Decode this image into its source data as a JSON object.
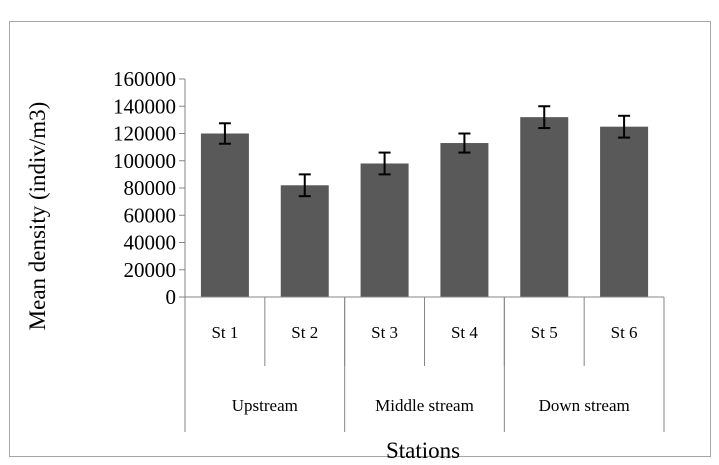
{
  "chart_data": {
    "type": "bar",
    "title": "",
    "xlabel": "Stations",
    "ylabel": "Mean density (indiv/m3)",
    "ylim": [
      0,
      160000
    ],
    "yticks": [
      0,
      20000,
      40000,
      60000,
      80000,
      100000,
      120000,
      140000,
      160000
    ],
    "yticks_labels": [
      "0",
      "20000",
      "40000",
      "60000",
      "80000",
      "100000",
      "120000",
      "140000",
      "160000"
    ],
    "categories": [
      "St 1",
      "St 2",
      "St 3",
      "St 4",
      "St 5",
      "St 6"
    ],
    "groups": [
      {
        "label": "Upstream",
        "span": 2
      },
      {
        "label": "Middle stream",
        "span": 2
      },
      {
        "label": "Down stream",
        "span": 2
      }
    ],
    "values": [
      120000,
      82000,
      98000,
      113000,
      132000,
      125000
    ],
    "errors": [
      7500,
      8000,
      8000,
      7000,
      8000,
      8000
    ],
    "bar_color": "#595959",
    "grid": false,
    "legend": "none"
  }
}
